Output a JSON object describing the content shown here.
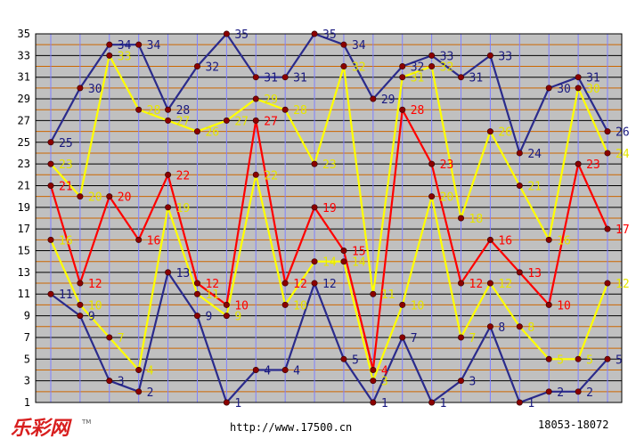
{
  "footer": {
    "url": "http://www.17500.cn",
    "range": "18053-18072",
    "logo": "乐彩网",
    "tm": "TM"
  },
  "chart_data": {
    "type": "line",
    "x": [
      1,
      2,
      3,
      4,
      5,
      6,
      7,
      8,
      9,
      10,
      11,
      12,
      13,
      14,
      15,
      16,
      17,
      18,
      19,
      20
    ],
    "yticks": [
      1,
      3,
      5,
      7,
      9,
      11,
      13,
      15,
      17,
      19,
      21,
      23,
      25,
      27,
      29,
      31,
      33,
      35
    ],
    "ylim": [
      1,
      35
    ],
    "grid": true,
    "colors": {
      "background": "#c0c0c0",
      "grid_odd": "#000000",
      "grid_even": "#cc6600",
      "vgrid": "#8080ff"
    },
    "series": [
      {
        "color": "#2b2b8c",
        "label_color": "#1a1a80",
        "values": [
          25,
          30,
          34,
          34,
          28,
          32,
          35,
          31,
          31,
          35,
          34,
          29,
          32,
          33,
          31,
          33,
          24,
          30,
          31,
          26
        ]
      },
      {
        "color": "#ffff00",
        "label_color": "#e6e600",
        "values": [
          23,
          20,
          33,
          28,
          27,
          26,
          27,
          29,
          28,
          23,
          32,
          11,
          31,
          32,
          18,
          26,
          21,
          16,
          30,
          24
        ]
      },
      {
        "color": "#ff0000",
        "label_color": "#ff0000",
        "values": [
          21,
          12,
          20,
          16,
          22,
          12,
          10,
          27,
          12,
          19,
          15,
          4,
          28,
          23,
          12,
          16,
          13,
          10,
          23,
          17
        ]
      },
      {
        "color": "#ffff00",
        "label_color": "#e6e600",
        "values": [
          16,
          10,
          7,
          4,
          19,
          11,
          9,
          22,
          10,
          14,
          14,
          3,
          10,
          20,
          7,
          12,
          8,
          5,
          5,
          12
        ]
      },
      {
        "color": "#2b2b8c",
        "label_color": "#1a1a80",
        "values": [
          11,
          9,
          3,
          2,
          13,
          9,
          1,
          4,
          4,
          12,
          5,
          1,
          7,
          1,
          3,
          8,
          1,
          2,
          2,
          5
        ]
      }
    ]
  }
}
